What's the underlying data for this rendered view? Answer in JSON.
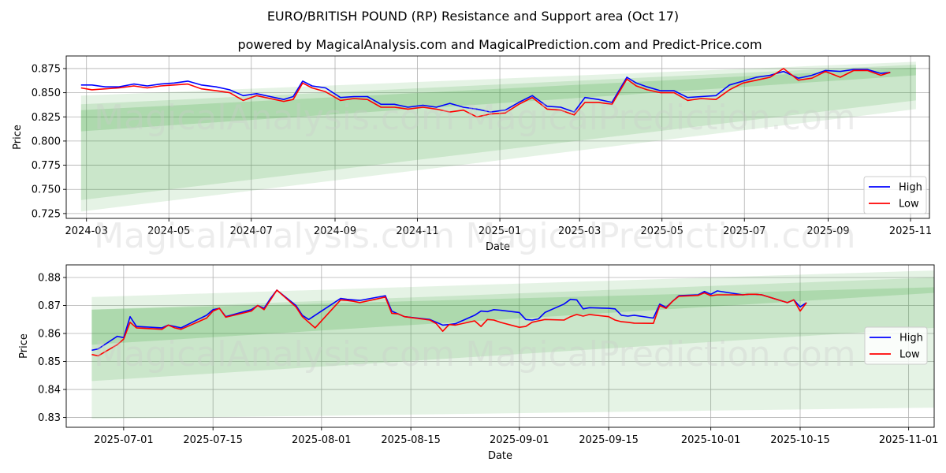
{
  "figure": {
    "title": "EURO/BRITISH POUND (RP) Resistance and Support area (Oct 17)",
    "subtitle": "powered by MagicalAnalysis.com and MagicalPrediction.com and Predict-Price.com",
    "watermarks": [
      "MagicalAnalysis.com",
      "MagicalPrediction.com"
    ]
  },
  "colors": {
    "high": "#0000ff",
    "low": "#ff0000",
    "band": "#2ca02c",
    "grid": "#b0b0b0"
  },
  "chart_data": [
    {
      "type": "line",
      "xlabel": "Date",
      "ylabel": "Price",
      "grid": true,
      "legend_position": "bottom-right",
      "xlim": [
        "2024-02-15",
        "2025-11-15"
      ],
      "ylim": [
        0.72,
        0.888
      ],
      "xticks": [
        "2024-03-01",
        "2024-05-01",
        "2024-07-01",
        "2024-09-01",
        "2024-11-01",
        "2025-01-01",
        "2025-03-01",
        "2025-05-01",
        "2025-07-01",
        "2025-09-01",
        "2025-11-01"
      ],
      "xtick_labels": [
        "2024-03",
        "2024-05",
        "2024-07",
        "2024-09",
        "2024-11",
        "2025-01",
        "2025-03",
        "2025-05",
        "2025-07",
        "2025-09",
        "2025-11"
      ],
      "yticks": [
        0.725,
        0.75,
        0.775,
        0.8,
        0.825,
        0.85,
        0.875
      ],
      "ytick_labels": [
        "0.725",
        "0.750",
        "0.775",
        "0.800",
        "0.825",
        "0.850",
        "0.875"
      ],
      "bands": [
        {
          "x": [
            "2024-02-26",
            "2025-11-05"
          ],
          "upper": [
            0.847,
            0.882
          ],
          "lower": [
            0.727,
            0.833
          ],
          "opacity": 0.12
        },
        {
          "x": [
            "2024-02-26",
            "2025-11-05"
          ],
          "upper": [
            0.838,
            0.879
          ],
          "lower": [
            0.739,
            0.842
          ],
          "opacity": 0.15
        },
        {
          "x": [
            "2024-02-26",
            "2025-11-05"
          ],
          "upper": [
            0.832,
            0.876
          ],
          "lower": [
            0.81,
            0.868
          ],
          "opacity": 0.18
        }
      ],
      "series": [
        {
          "name": "High",
          "x": [
            "2024-02-26",
            "2024-03-05",
            "2024-03-15",
            "2024-03-25",
            "2024-04-05",
            "2024-04-15",
            "2024-04-25",
            "2024-05-05",
            "2024-05-15",
            "2024-05-25",
            "2024-06-05",
            "2024-06-15",
            "2024-06-25",
            "2024-07-05",
            "2024-07-15",
            "2024-07-25",
            "2024-08-01",
            "2024-08-08",
            "2024-08-15",
            "2024-08-25",
            "2024-09-05",
            "2024-09-15",
            "2024-09-25",
            "2024-10-05",
            "2024-10-15",
            "2024-10-25",
            "2024-11-05",
            "2024-11-15",
            "2024-11-25",
            "2024-12-05",
            "2024-12-15",
            "2024-12-25",
            "2025-01-05",
            "2025-01-15",
            "2025-01-25",
            "2025-02-05",
            "2025-02-15",
            "2025-02-25",
            "2025-03-05",
            "2025-03-15",
            "2025-03-25",
            "2025-04-05",
            "2025-04-12",
            "2025-04-20",
            "2025-04-30",
            "2025-05-10",
            "2025-05-20",
            "2025-05-30",
            "2025-06-10",
            "2025-06-20",
            "2025-06-30",
            "2025-07-10",
            "2025-07-20",
            "2025-07-30",
            "2025-08-10",
            "2025-08-20",
            "2025-08-30",
            "2025-09-10",
            "2025-09-20",
            "2025-09-30",
            "2025-10-10",
            "2025-10-17"
          ],
          "values": [
            0.858,
            0.858,
            0.856,
            0.856,
            0.859,
            0.857,
            0.859,
            0.86,
            0.862,
            0.858,
            0.856,
            0.853,
            0.847,
            0.849,
            0.846,
            0.843,
            0.846,
            0.862,
            0.857,
            0.855,
            0.845,
            0.846,
            0.846,
            0.838,
            0.838,
            0.835,
            0.837,
            0.835,
            0.839,
            0.835,
            0.833,
            0.83,
            0.832,
            0.84,
            0.847,
            0.836,
            0.835,
            0.83,
            0.845,
            0.843,
            0.84,
            0.866,
            0.86,
            0.856,
            0.852,
            0.852,
            0.845,
            0.846,
            0.847,
            0.858,
            0.862,
            0.866,
            0.868,
            0.872,
            0.865,
            0.868,
            0.873,
            0.872,
            0.874,
            0.874,
            0.87,
            0.871
          ]
        },
        {
          "name": "Low",
          "x": [
            "2024-02-26",
            "2024-03-05",
            "2024-03-15",
            "2024-03-25",
            "2024-04-05",
            "2024-04-15",
            "2024-04-25",
            "2024-05-05",
            "2024-05-15",
            "2024-05-25",
            "2024-06-05",
            "2024-06-15",
            "2024-06-25",
            "2024-07-05",
            "2024-07-15",
            "2024-07-25",
            "2024-08-01",
            "2024-08-08",
            "2024-08-15",
            "2024-08-25",
            "2024-09-05",
            "2024-09-15",
            "2024-09-25",
            "2024-10-05",
            "2024-10-15",
            "2024-10-25",
            "2024-11-05",
            "2024-11-15",
            "2024-11-25",
            "2024-12-05",
            "2024-12-15",
            "2024-12-25",
            "2025-01-05",
            "2025-01-15",
            "2025-01-25",
            "2025-02-05",
            "2025-02-15",
            "2025-02-25",
            "2025-03-05",
            "2025-03-15",
            "2025-03-25",
            "2025-04-05",
            "2025-04-12",
            "2025-04-20",
            "2025-04-30",
            "2025-05-10",
            "2025-05-20",
            "2025-05-30",
            "2025-06-10",
            "2025-06-20",
            "2025-06-30",
            "2025-07-10",
            "2025-07-20",
            "2025-07-30",
            "2025-08-10",
            "2025-08-20",
            "2025-08-30",
            "2025-09-10",
            "2025-09-20",
            "2025-09-30",
            "2025-10-10",
            "2025-10-17"
          ],
          "values": [
            0.855,
            0.853,
            0.854,
            0.855,
            0.857,
            0.855,
            0.857,
            0.858,
            0.859,
            0.854,
            0.852,
            0.85,
            0.842,
            0.847,
            0.844,
            0.841,
            0.843,
            0.86,
            0.855,
            0.851,
            0.842,
            0.844,
            0.843,
            0.835,
            0.835,
            0.833,
            0.835,
            0.833,
            0.83,
            0.832,
            0.825,
            0.828,
            0.829,
            0.838,
            0.845,
            0.833,
            0.832,
            0.827,
            0.84,
            0.84,
            0.838,
            0.864,
            0.857,
            0.853,
            0.85,
            0.85,
            0.842,
            0.844,
            0.843,
            0.853,
            0.86,
            0.863,
            0.866,
            0.875,
            0.863,
            0.865,
            0.872,
            0.866,
            0.873,
            0.873,
            0.868,
            0.871
          ]
        }
      ]
    },
    {
      "type": "line",
      "xlabel": "Date",
      "ylabel": "Price",
      "grid": true,
      "legend_position": "center-right",
      "xlim": [
        "2025-06-22",
        "2025-11-05"
      ],
      "ylim": [
        0.8265,
        0.8845
      ],
      "xticks": [
        "2025-07-01",
        "2025-07-15",
        "2025-08-01",
        "2025-08-15",
        "2025-09-01",
        "2025-09-15",
        "2025-10-01",
        "2025-10-15",
        "2025-11-01"
      ],
      "xtick_labels": [
        "2025-07-01",
        "2025-07-15",
        "2025-08-01",
        "2025-08-15",
        "2025-09-01",
        "2025-09-15",
        "2025-10-01",
        "2025-10-15",
        "2025-11-01"
      ],
      "yticks": [
        0.83,
        0.84,
        0.85,
        0.86,
        0.87,
        0.88
      ],
      "ytick_labels": [
        "0.83",
        "0.84",
        "0.85",
        "0.86",
        "0.87",
        "0.88"
      ],
      "bands": [
        {
          "x": [
            "2025-06-26",
            "2025-11-05"
          ],
          "upper": [
            0.873,
            0.8825
          ],
          "lower": [
            0.8295,
            0.8335
          ],
          "opacity": 0.12
        },
        {
          "x": [
            "2025-06-26",
            "2025-11-05"
          ],
          "upper": [
            0.8685,
            0.88
          ],
          "lower": [
            0.843,
            0.862
          ],
          "opacity": 0.15
        },
        {
          "x": [
            "2025-06-26",
            "2025-11-05"
          ],
          "upper": [
            0.8685,
            0.8765
          ],
          "lower": [
            0.856,
            0.8745
          ],
          "opacity": 0.18
        }
      ],
      "series": [
        {
          "name": "High",
          "x": [
            "2025-06-26",
            "2025-06-27",
            "2025-06-30",
            "2025-07-01",
            "2025-07-02",
            "2025-07-03",
            "2025-07-07",
            "2025-07-08",
            "2025-07-09",
            "2025-07-10",
            "2025-07-14",
            "2025-07-15",
            "2025-07-16",
            "2025-07-17",
            "2025-07-21",
            "2025-07-22",
            "2025-07-23",
            "2025-07-24",
            "2025-07-25",
            "2025-07-28",
            "2025-07-29",
            "2025-07-30",
            "2025-07-31",
            "2025-08-04",
            "2025-08-05",
            "2025-08-06",
            "2025-08-07",
            "2025-08-11",
            "2025-08-12",
            "2025-08-13",
            "2025-08-14",
            "2025-08-18",
            "2025-08-19",
            "2025-08-20",
            "2025-08-21",
            "2025-08-22",
            "2025-08-25",
            "2025-08-26",
            "2025-08-27",
            "2025-08-28",
            "2025-08-29",
            "2025-09-01",
            "2025-09-02",
            "2025-09-03",
            "2025-09-04",
            "2025-09-05",
            "2025-09-08",
            "2025-09-09",
            "2025-09-10",
            "2025-09-11",
            "2025-09-12",
            "2025-09-15",
            "2025-09-16",
            "2025-09-17",
            "2025-09-18",
            "2025-09-19",
            "2025-09-22",
            "2025-09-23",
            "2025-09-24",
            "2025-09-25",
            "2025-09-26",
            "2025-09-29",
            "2025-09-30",
            "2025-10-01",
            "2025-10-02",
            "2025-10-06",
            "2025-10-07",
            "2025-10-08",
            "2025-10-09",
            "2025-10-13",
            "2025-10-14",
            "2025-10-15",
            "2025-10-16"
          ],
          "values": [
            0.854,
            0.8545,
            0.859,
            0.8585,
            0.866,
            0.8625,
            0.862,
            0.863,
            0.8625,
            0.862,
            0.8665,
            0.8685,
            0.869,
            0.866,
            0.8685,
            0.87,
            0.869,
            0.8725,
            0.8755,
            0.87,
            0.8665,
            0.865,
            0.8665,
            0.8725,
            0.8722,
            0.872,
            0.8718,
            0.8735,
            0.868,
            0.867,
            0.866,
            0.865,
            0.864,
            0.863,
            0.8632,
            0.8635,
            0.8665,
            0.868,
            0.8678,
            0.8685,
            0.8683,
            0.8675,
            0.865,
            0.8648,
            0.8652,
            0.8675,
            0.8705,
            0.8722,
            0.872,
            0.8688,
            0.8692,
            0.869,
            0.8688,
            0.8665,
            0.8662,
            0.8665,
            0.8655,
            0.8705,
            0.8693,
            0.8715,
            0.8735,
            0.8738,
            0.875,
            0.874,
            0.8752,
            0.8738,
            0.874,
            0.874,
            0.8738,
            0.871,
            0.872,
            0.8695,
            0.871
          ]
        },
        {
          "name": "Low",
          "x": [
            "2025-06-26",
            "2025-06-27",
            "2025-06-30",
            "2025-07-01",
            "2025-07-02",
            "2025-07-03",
            "2025-07-07",
            "2025-07-08",
            "2025-07-09",
            "2025-07-10",
            "2025-07-14",
            "2025-07-15",
            "2025-07-16",
            "2025-07-17",
            "2025-07-21",
            "2025-07-22",
            "2025-07-23",
            "2025-07-24",
            "2025-07-25",
            "2025-07-28",
            "2025-07-29",
            "2025-07-30",
            "2025-07-31",
            "2025-08-04",
            "2025-08-05",
            "2025-08-06",
            "2025-08-07",
            "2025-08-11",
            "2025-08-12",
            "2025-08-13",
            "2025-08-14",
            "2025-08-18",
            "2025-08-19",
            "2025-08-20",
            "2025-08-21",
            "2025-08-22",
            "2025-08-25",
            "2025-08-26",
            "2025-08-27",
            "2025-08-28",
            "2025-08-29",
            "2025-09-01",
            "2025-09-02",
            "2025-09-03",
            "2025-09-04",
            "2025-09-05",
            "2025-09-08",
            "2025-09-09",
            "2025-09-10",
            "2025-09-11",
            "2025-09-12",
            "2025-09-15",
            "2025-09-16",
            "2025-09-17",
            "2025-09-18",
            "2025-09-19",
            "2025-09-22",
            "2025-09-23",
            "2025-09-24",
            "2025-09-25",
            "2025-09-26",
            "2025-09-29",
            "2025-09-30",
            "2025-10-01",
            "2025-10-02",
            "2025-10-06",
            "2025-10-07",
            "2025-10-08",
            "2025-10-09",
            "2025-10-13",
            "2025-10-14",
            "2025-10-15",
            "2025-10-16"
          ],
          "values": [
            0.8525,
            0.852,
            0.856,
            0.858,
            0.864,
            0.862,
            0.8615,
            0.863,
            0.862,
            0.8615,
            0.8655,
            0.868,
            0.869,
            0.8658,
            0.868,
            0.87,
            0.8685,
            0.872,
            0.8755,
            0.8695,
            0.866,
            0.864,
            0.862,
            0.872,
            0.8718,
            0.8715,
            0.871,
            0.873,
            0.8672,
            0.867,
            0.866,
            0.8648,
            0.8635,
            0.8608,
            0.8632,
            0.863,
            0.8645,
            0.8625,
            0.865,
            0.8648,
            0.864,
            0.8622,
            0.8625,
            0.864,
            0.8645,
            0.865,
            0.8648,
            0.866,
            0.8668,
            0.8662,
            0.8668,
            0.866,
            0.8648,
            0.8642,
            0.864,
            0.8637,
            0.8636,
            0.87,
            0.869,
            0.8715,
            0.8733,
            0.8736,
            0.8745,
            0.8735,
            0.8738,
            0.8738,
            0.874,
            0.874,
            0.8738,
            0.871,
            0.872,
            0.868,
            0.871
          ]
        }
      ]
    }
  ]
}
